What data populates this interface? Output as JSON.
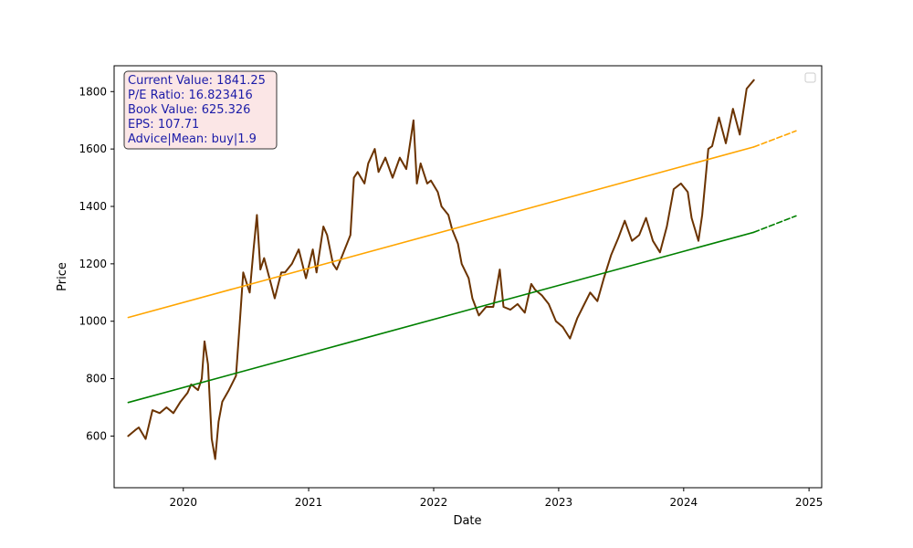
{
  "chart_data": {
    "type": "line",
    "title": "",
    "xlabel": "Date",
    "ylabel": "Price",
    "xlim": [
      "2019-06-13",
      "2025-02-07"
    ],
    "ylim": [
      420,
      1890
    ],
    "x_ticks": [
      "2020",
      "2021",
      "2022",
      "2023",
      "2024",
      "2025"
    ],
    "y_ticks": [
      600,
      800,
      1000,
      1200,
      1400,
      1600,
      1800
    ],
    "grid": false,
    "legend": {
      "placement": "top-right",
      "entries": []
    },
    "info_box": {
      "lines": [
        "Current Value: 1841.25",
        "P/E Ratio: 16.823416",
        "Book Value: 625.326",
        "EPS: 107.71",
        "Advice|Mean: buy|1.9"
      ],
      "text_color": "#1c1ca8",
      "background": "#fbe6e6",
      "border": "#333333"
    },
    "series": [
      {
        "color": "#6b3300",
        "style": "solid",
        "x": [
          "2019-07-24",
          "2019-08-13",
          "2019-08-24",
          "2019-09-13",
          "2019-10-03",
          "2019-10-24",
          "2019-11-13",
          "2019-12-03",
          "2019-12-24",
          "2020-01-13",
          "2020-01-24",
          "2020-02-13",
          "2020-02-24",
          "2020-03-03",
          "2020-03-13",
          "2020-03-24",
          "2020-04-03",
          "2020-04-13",
          "2020-04-24",
          "2020-05-13",
          "2020-06-03",
          "2020-06-13",
          "2020-06-24",
          "2020-07-13",
          "2020-07-24",
          "2020-08-03",
          "2020-08-13",
          "2020-08-24",
          "2020-09-13",
          "2020-09-24",
          "2020-10-13",
          "2020-10-24",
          "2020-11-13",
          "2020-12-03",
          "2020-12-24",
          "2021-01-13",
          "2021-01-24",
          "2021-02-13",
          "2021-02-24",
          "2021-03-13",
          "2021-03-24",
          "2021-04-13",
          "2021-05-03",
          "2021-05-13",
          "2021-05-24",
          "2021-06-13",
          "2021-06-24",
          "2021-07-13",
          "2021-07-24",
          "2021-08-13",
          "2021-09-03",
          "2021-09-24",
          "2021-10-13",
          "2021-11-03",
          "2021-11-13",
          "2021-11-24",
          "2021-12-13",
          "2021-12-24",
          "2022-01-13",
          "2022-01-24",
          "2022-02-13",
          "2022-02-24",
          "2022-03-13",
          "2022-03-24",
          "2022-04-13",
          "2022-04-24",
          "2022-05-13",
          "2022-06-03",
          "2022-06-24",
          "2022-07-13",
          "2022-07-24",
          "2022-08-13",
          "2022-09-03",
          "2022-09-24",
          "2022-10-13",
          "2022-10-24",
          "2022-11-13",
          "2022-12-03",
          "2022-12-24",
          "2023-01-13",
          "2023-02-03",
          "2023-02-24",
          "2023-03-13",
          "2023-04-03",
          "2023-04-24",
          "2023-05-13",
          "2023-06-03",
          "2023-06-24",
          "2023-07-13",
          "2023-08-03",
          "2023-08-24",
          "2023-09-13",
          "2023-10-03",
          "2023-10-24",
          "2023-11-13",
          "2023-12-03",
          "2023-12-24",
          "2024-01-13",
          "2024-01-24",
          "2024-02-13",
          "2024-02-24",
          "2024-03-13",
          "2024-03-24",
          "2024-04-13",
          "2024-05-03",
          "2024-05-24",
          "2024-06-13",
          "2024-07-03",
          "2024-07-24"
        ],
        "y": [
          600,
          620,
          630,
          590,
          690,
          680,
          700,
          680,
          720,
          750,
          780,
          760,
          800,
          930,
          850,
          590,
          520,
          650,
          720,
          760,
          810,
          980,
          1170,
          1100,
          1250,
          1370,
          1180,
          1220,
          1130,
          1080,
          1170,
          1170,
          1200,
          1250,
          1150,
          1250,
          1170,
          1330,
          1300,
          1200,
          1180,
          1240,
          1300,
          1500,
          1520,
          1480,
          1550,
          1600,
          1520,
          1570,
          1500,
          1570,
          1530,
          1700,
          1480,
          1550,
          1480,
          1490,
          1450,
          1400,
          1370,
          1320,
          1270,
          1200,
          1150,
          1080,
          1020,
          1050,
          1050,
          1180,
          1050,
          1040,
          1060,
          1030,
          1130,
          1110,
          1090,
          1060,
          1000,
          980,
          940,
          1010,
          1050,
          1100,
          1070,
          1150,
          1230,
          1290,
          1350,
          1280,
          1300,
          1360,
          1280,
          1240,
          1330,
          1460,
          1480,
          1450,
          1360,
          1280,
          1370,
          1600,
          1610,
          1710,
          1620,
          1740,
          1650,
          1810,
          1840
        ]
      },
      {
        "color": "#ffa500",
        "style": "solid",
        "x": [
          "2019-07-24",
          "2024-07-24"
        ],
        "y": [
          1013,
          1607
        ]
      },
      {
        "color": "#ffa500",
        "style": "dashed",
        "x": [
          "2024-07-24",
          "2024-11-24"
        ],
        "y": [
          1607,
          1663
        ]
      },
      {
        "color": "#008000",
        "style": "solid",
        "x": [
          "2019-07-24",
          "2024-07-24"
        ],
        "y": [
          717,
          1310
        ]
      },
      {
        "color": "#008000",
        "style": "dashed",
        "x": [
          "2024-07-24",
          "2024-11-24"
        ],
        "y": [
          1310,
          1367
        ]
      }
    ]
  }
}
